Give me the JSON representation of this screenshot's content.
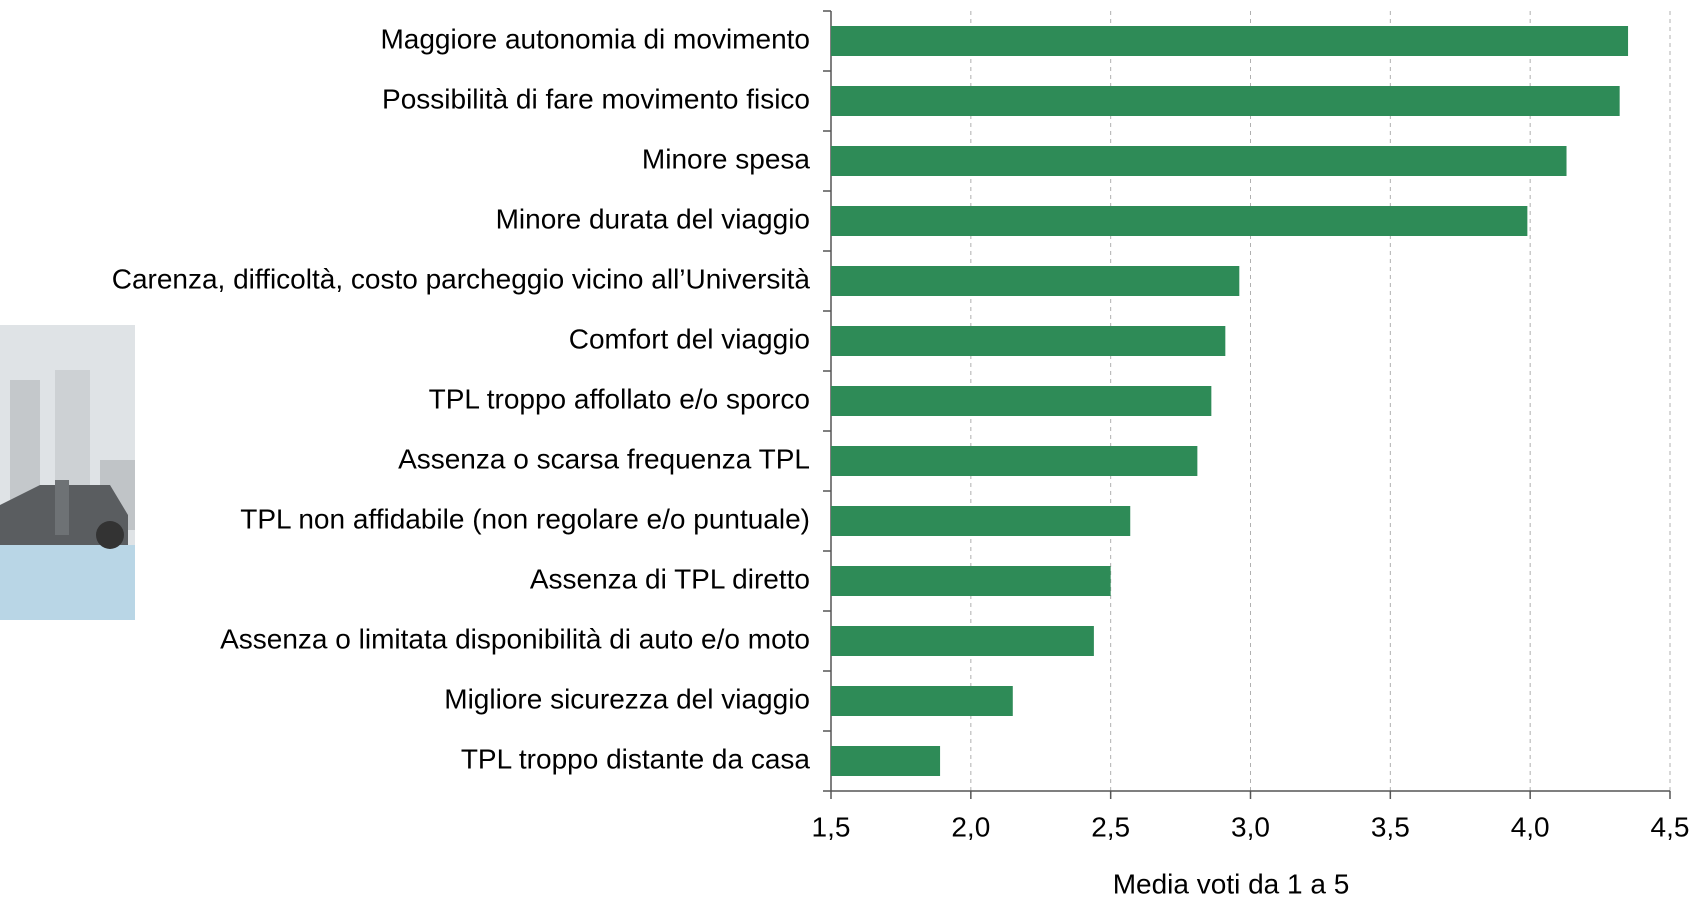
{
  "chart_data": {
    "type": "barh",
    "xlabel": "Media voti da 1 a 5",
    "categories": [
      "Maggiore autonomia di movimento",
      "Possibilità di fare movimento fisico",
      "Minore spesa",
      "Minore durata del viaggio",
      "Carenza, difficoltà, costo parcheggio vicino all’Università",
      "Comfort del viaggio",
      "TPL troppo affollato e/o sporco",
      "Assenza o scarsa frequenza TPL",
      "TPL non affidabile (non regolare e/o puntuale)",
      "Assenza di TPL diretto",
      "Assenza o limitata disponibilità di auto e/o moto",
      "Migliore sicurezza del viaggio",
      "TPL troppo distante da casa"
    ],
    "values": [
      4.35,
      4.32,
      4.13,
      3.99,
      2.96,
      2.91,
      2.86,
      2.81,
      2.57,
      2.5,
      2.44,
      2.15,
      1.89
    ],
    "color": "#2e8b57",
    "xlim": [
      1.5,
      4.5
    ],
    "xticks": [
      {
        "value": 1.5,
        "label": "1,5"
      },
      {
        "value": 2.0,
        "label": "2,0"
      },
      {
        "value": 2.5,
        "label": "2,5"
      },
      {
        "value": 3.0,
        "label": "3,0"
      },
      {
        "value": 3.5,
        "label": "3,5"
      },
      {
        "value": 4.0,
        "label": "4,0"
      },
      {
        "value": 4.5,
        "label": "4,5"
      }
    ],
    "grid": true
  }
}
